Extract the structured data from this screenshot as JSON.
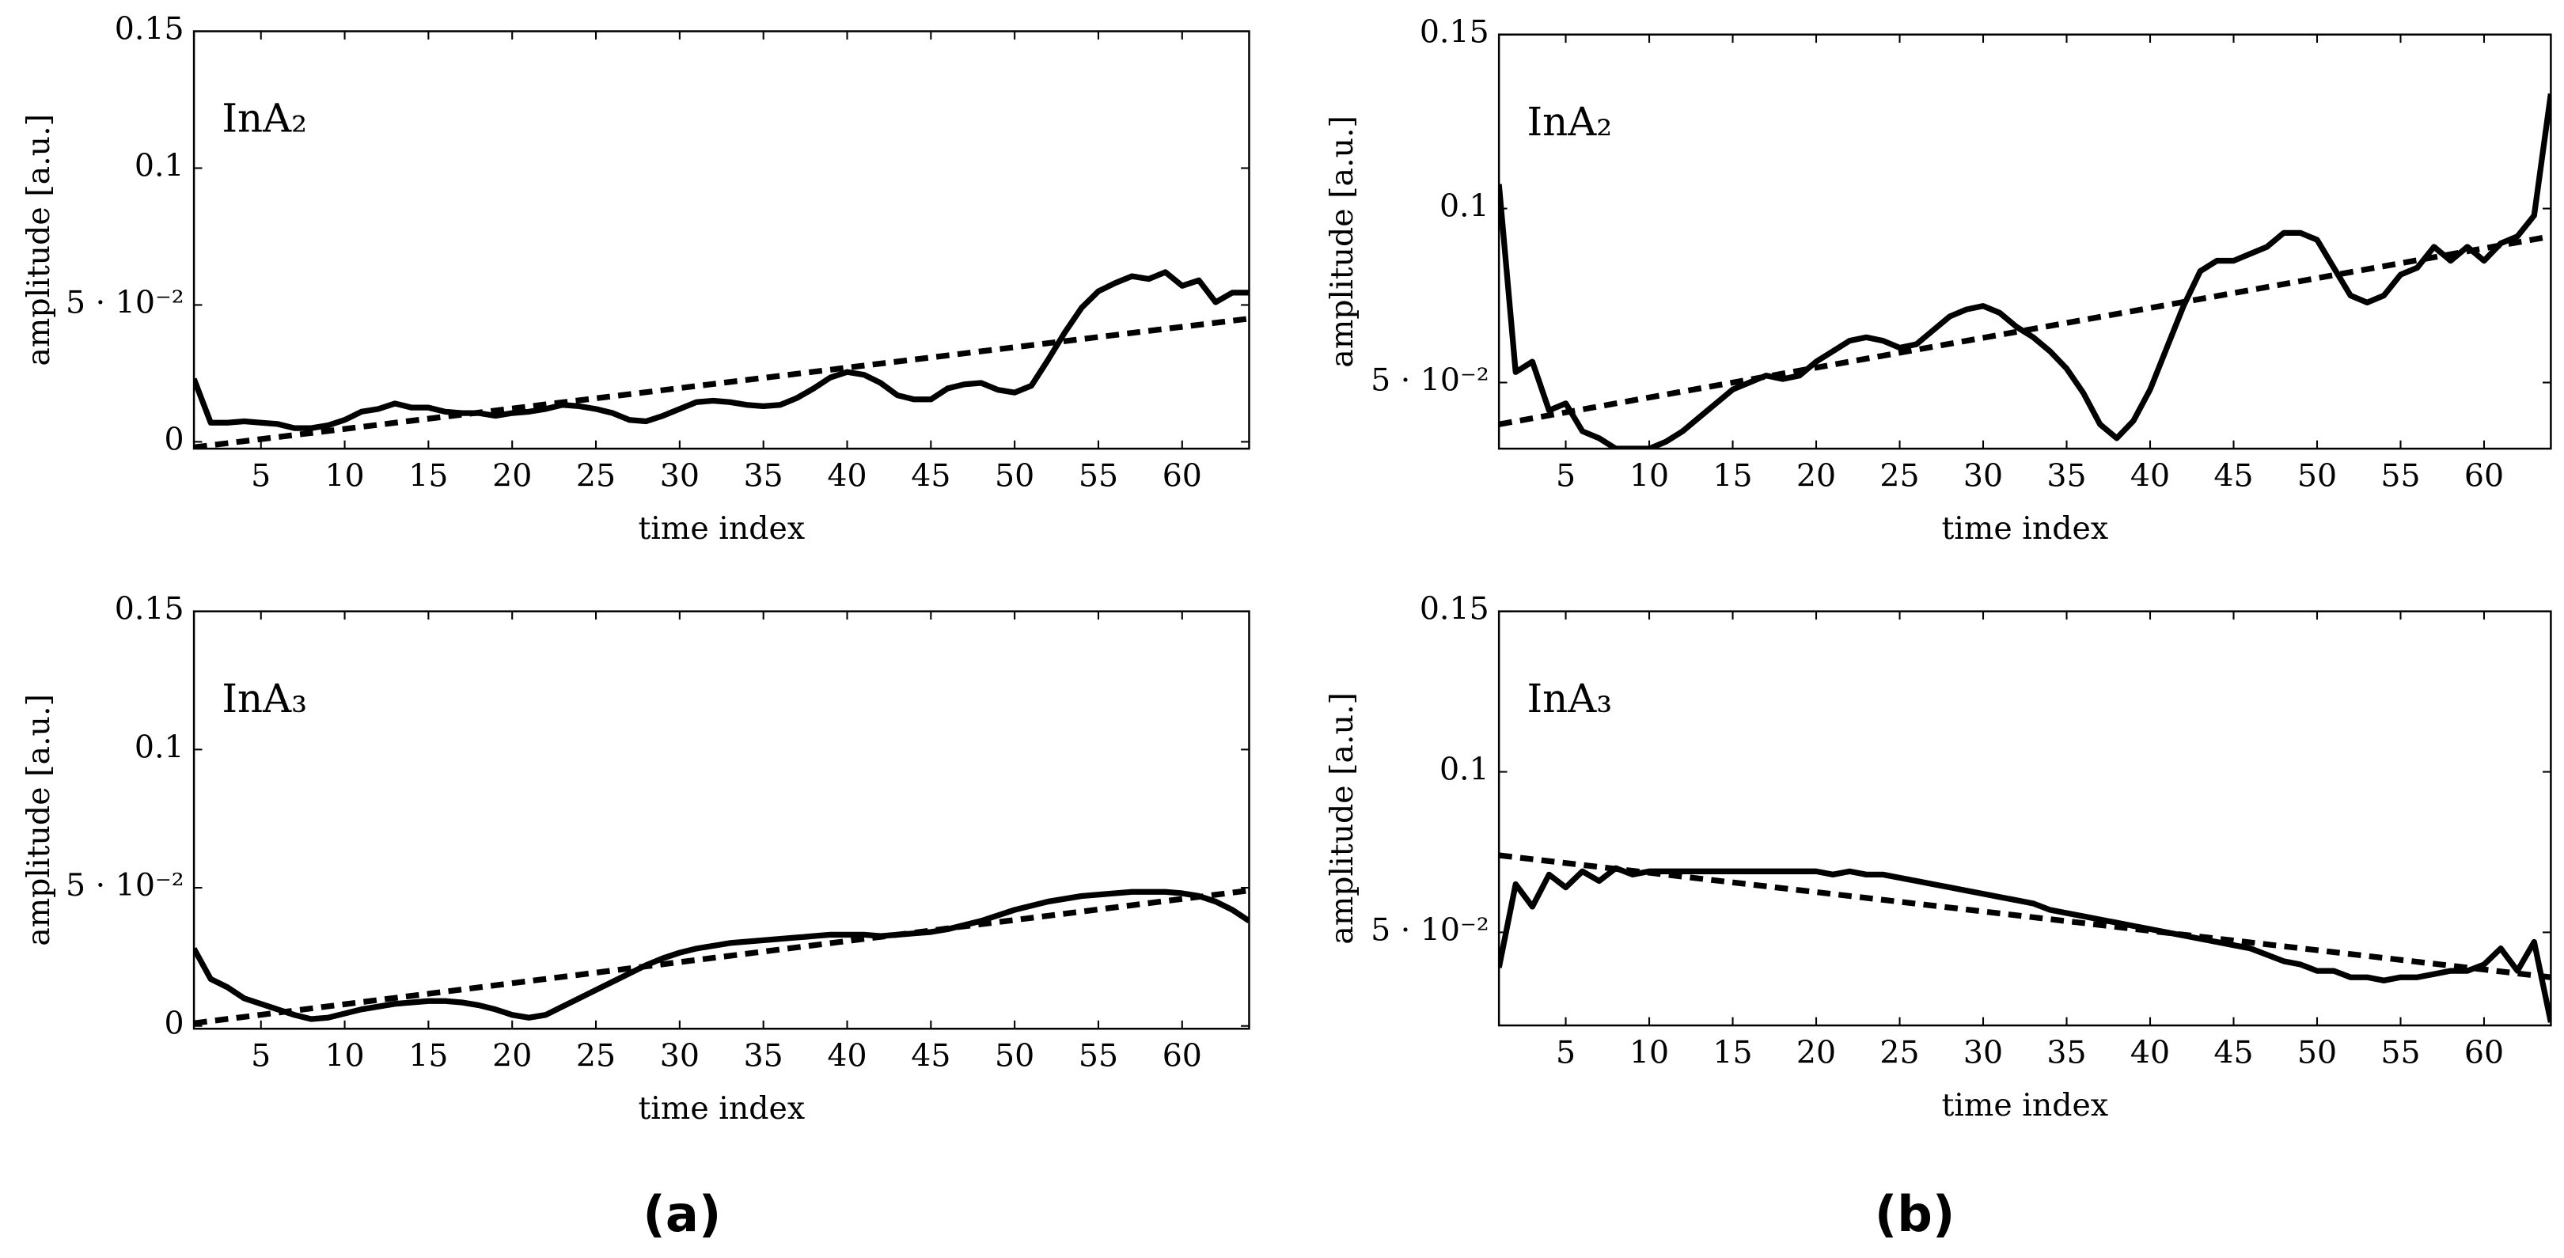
{
  "chart_data": [
    {
      "type": "line",
      "position": "top-left",
      "ylabel": "amplitude [a.u.]",
      "xlabel": "time index",
      "annotation": "InA₂",
      "xlim": [
        1,
        64
      ],
      "xticks": [
        5,
        10,
        15,
        20,
        25,
        30,
        35,
        40,
        45,
        50,
        55,
        60
      ],
      "ylim": [
        -0.0025,
        0.15
      ],
      "yticks": [
        0,
        {
          "value": 0.05,
          "label": "5 · 10⁻²"
        },
        0.1,
        0.15
      ],
      "series": [
        {
          "color": "#000000",
          "style": "solid",
          "x": [
            1,
            2,
            3,
            4,
            5,
            6,
            7,
            8,
            9,
            10,
            11,
            12,
            13,
            14,
            15,
            16,
            17,
            18,
            19,
            20,
            21,
            22,
            23,
            24,
            25,
            26,
            27,
            28,
            29,
            30,
            31,
            32,
            33,
            34,
            35,
            36,
            37,
            38,
            39,
            40,
            41,
            42,
            43,
            44,
            45,
            46,
            47,
            48,
            49,
            50,
            51,
            52,
            53,
            54,
            55,
            56,
            57,
            58,
            59,
            60,
            61,
            62,
            63,
            64
          ],
          "values": [
            0.023,
            0.007,
            0.007,
            0.0075,
            0.007,
            0.0065,
            0.005,
            0.005,
            0.006,
            0.008,
            0.011,
            0.012,
            0.014,
            0.0125,
            0.0125,
            0.011,
            0.0105,
            0.0105,
            0.0095,
            0.0105,
            0.011,
            0.012,
            0.0135,
            0.013,
            0.012,
            0.0105,
            0.008,
            0.0075,
            0.0095,
            0.012,
            0.0145,
            0.015,
            0.0145,
            0.0135,
            0.013,
            0.0135,
            0.016,
            0.0195,
            0.0235,
            0.0255,
            0.0245,
            0.0215,
            0.017,
            0.0155,
            0.0155,
            0.0195,
            0.021,
            0.0215,
            0.019,
            0.018,
            0.0205,
            0.03,
            0.04,
            0.049,
            0.055,
            0.058,
            0.0605,
            0.0595,
            0.062,
            0.057,
            0.059,
            0.051,
            0.0545,
            0.0545
          ]
        },
        {
          "color": "#000000",
          "style": "dashed",
          "x": [
            1,
            64
          ],
          "values": [
            -0.002,
            0.045
          ]
        }
      ]
    },
    {
      "type": "line",
      "position": "top-right",
      "ylabel": "amplitude [a.u.]",
      "xlabel": "time index",
      "annotation": "InA₂",
      "xlim": [
        1,
        64
      ],
      "xticks": [
        5,
        10,
        15,
        20,
        25,
        30,
        35,
        40,
        45,
        50,
        55,
        60
      ],
      "ylim": [
        0.031,
        0.15
      ],
      "yticks": [
        {
          "value": 0.05,
          "label": "5 · 10⁻²"
        },
        0.1,
        0.15
      ],
      "series": [
        {
          "color": "#000000",
          "style": "solid",
          "x": [
            1,
            2,
            3,
            4,
            5,
            6,
            7,
            8,
            9,
            10,
            11,
            12,
            13,
            14,
            15,
            16,
            17,
            18,
            19,
            20,
            21,
            22,
            23,
            24,
            25,
            26,
            27,
            28,
            29,
            30,
            31,
            32,
            33,
            34,
            35,
            36,
            37,
            38,
            39,
            40,
            41,
            42,
            43,
            44,
            45,
            46,
            47,
            48,
            49,
            50,
            51,
            52,
            53,
            54,
            55,
            56,
            57,
            58,
            59,
            60,
            61,
            62,
            63,
            64
          ],
          "values": [
            0.107,
            0.053,
            0.056,
            0.042,
            0.044,
            0.036,
            0.034,
            0.031,
            0.031,
            0.031,
            0.033,
            0.036,
            0.04,
            0.044,
            0.048,
            0.05,
            0.052,
            0.051,
            0.052,
            0.056,
            0.059,
            0.062,
            0.063,
            0.062,
            0.06,
            0.061,
            0.065,
            0.069,
            0.071,
            0.072,
            0.07,
            0.066,
            0.063,
            0.059,
            0.054,
            0.047,
            0.038,
            0.034,
            0.039,
            0.048,
            0.06,
            0.072,
            0.082,
            0.085,
            0.085,
            0.087,
            0.089,
            0.093,
            0.093,
            0.091,
            0.083,
            0.075,
            0.073,
            0.075,
            0.081,
            0.083,
            0.089,
            0.085,
            0.089,
            0.085,
            0.09,
            0.092,
            0.098,
            0.133
          ]
        },
        {
          "color": "#000000",
          "style": "dashed",
          "x": [
            1,
            64
          ],
          "values": [
            0.038,
            0.092
          ]
        }
      ]
    },
    {
      "type": "line",
      "position": "bottom-left",
      "ylabel": "amplitude [a.u.]",
      "xlabel": "time index",
      "annotation": "InA₃",
      "xlim": [
        1,
        64
      ],
      "xticks": [
        5,
        10,
        15,
        20,
        25,
        30,
        35,
        40,
        45,
        50,
        55,
        60
      ],
      "ylim": [
        -0.001,
        0.15
      ],
      "yticks": [
        0,
        {
          "value": 0.05,
          "label": "5 · 10⁻²"
        },
        0.1,
        0.15
      ],
      "series": [
        {
          "color": "#000000",
          "style": "solid",
          "x": [
            1,
            2,
            3,
            4,
            5,
            6,
            7,
            8,
            9,
            10,
            11,
            12,
            13,
            14,
            15,
            16,
            17,
            18,
            19,
            20,
            21,
            22,
            23,
            24,
            25,
            26,
            27,
            28,
            29,
            30,
            31,
            32,
            33,
            34,
            35,
            36,
            37,
            38,
            39,
            40,
            41,
            42,
            43,
            44,
            45,
            46,
            47,
            48,
            49,
            50,
            51,
            52,
            53,
            54,
            55,
            56,
            57,
            58,
            59,
            60,
            61,
            62,
            63,
            64
          ],
          "values": [
            0.028,
            0.017,
            0.014,
            0.01,
            0.008,
            0.006,
            0.004,
            0.0025,
            0.003,
            0.0045,
            0.006,
            0.007,
            0.008,
            0.0085,
            0.009,
            0.009,
            0.0085,
            0.0075,
            0.006,
            0.004,
            0.003,
            0.004,
            0.007,
            0.01,
            0.013,
            0.016,
            0.019,
            0.022,
            0.0245,
            0.0265,
            0.028,
            0.029,
            0.03,
            0.0305,
            0.031,
            0.0315,
            0.032,
            0.0325,
            0.033,
            0.033,
            0.033,
            0.0325,
            0.033,
            0.0335,
            0.034,
            0.035,
            0.0365,
            0.038,
            0.04,
            0.042,
            0.0435,
            0.045,
            0.046,
            0.047,
            0.0475,
            0.048,
            0.0485,
            0.0485,
            0.0485,
            0.048,
            0.047,
            0.045,
            0.042,
            0.038
          ]
        },
        {
          "color": "#000000",
          "style": "dashed",
          "x": [
            1,
            64
          ],
          "values": [
            0.001,
            0.049
          ]
        }
      ]
    },
    {
      "type": "line",
      "position": "bottom-right",
      "ylabel": "amplitude [a.u.]",
      "xlabel": "time index",
      "annotation": "InA₃",
      "xlim": [
        1,
        64
      ],
      "xticks": [
        5,
        10,
        15,
        20,
        25,
        30,
        35,
        40,
        45,
        50,
        55,
        60
      ],
      "ylim": [
        0.021,
        0.15
      ],
      "yticks": [
        {
          "value": 0.05,
          "label": "5 · 10⁻²"
        },
        0.1,
        0.15
      ],
      "series": [
        {
          "color": "#000000",
          "style": "solid",
          "x": [
            1,
            2,
            3,
            4,
            5,
            6,
            7,
            8,
            9,
            10,
            11,
            12,
            13,
            14,
            15,
            16,
            17,
            18,
            19,
            20,
            21,
            22,
            23,
            24,
            25,
            26,
            27,
            28,
            29,
            30,
            31,
            32,
            33,
            34,
            35,
            36,
            37,
            38,
            39,
            40,
            41,
            42,
            43,
            44,
            45,
            46,
            47,
            48,
            49,
            50,
            51,
            52,
            53,
            54,
            55,
            56,
            57,
            58,
            59,
            60,
            61,
            62,
            63,
            64
          ],
          "values": [
            0.039,
            0.065,
            0.058,
            0.068,
            0.064,
            0.069,
            0.066,
            0.07,
            0.068,
            0.069,
            0.069,
            0.069,
            0.069,
            0.069,
            0.069,
            0.069,
            0.069,
            0.069,
            0.069,
            0.069,
            0.068,
            0.069,
            0.068,
            0.068,
            0.067,
            0.066,
            0.065,
            0.064,
            0.063,
            0.062,
            0.061,
            0.06,
            0.059,
            0.057,
            0.056,
            0.055,
            0.054,
            0.053,
            0.052,
            0.051,
            0.05,
            0.049,
            0.048,
            0.047,
            0.046,
            0.045,
            0.043,
            0.041,
            0.04,
            0.038,
            0.038,
            0.036,
            0.036,
            0.035,
            0.036,
            0.036,
            0.037,
            0.038,
            0.038,
            0.04,
            0.045,
            0.038,
            0.047,
            0.022
          ]
        },
        {
          "color": "#000000",
          "style": "dashed",
          "x": [
            1,
            64
          ],
          "values": [
            0.074,
            0.036
          ]
        }
      ]
    }
  ],
  "captions": [
    "(a)",
    "(b)"
  ]
}
